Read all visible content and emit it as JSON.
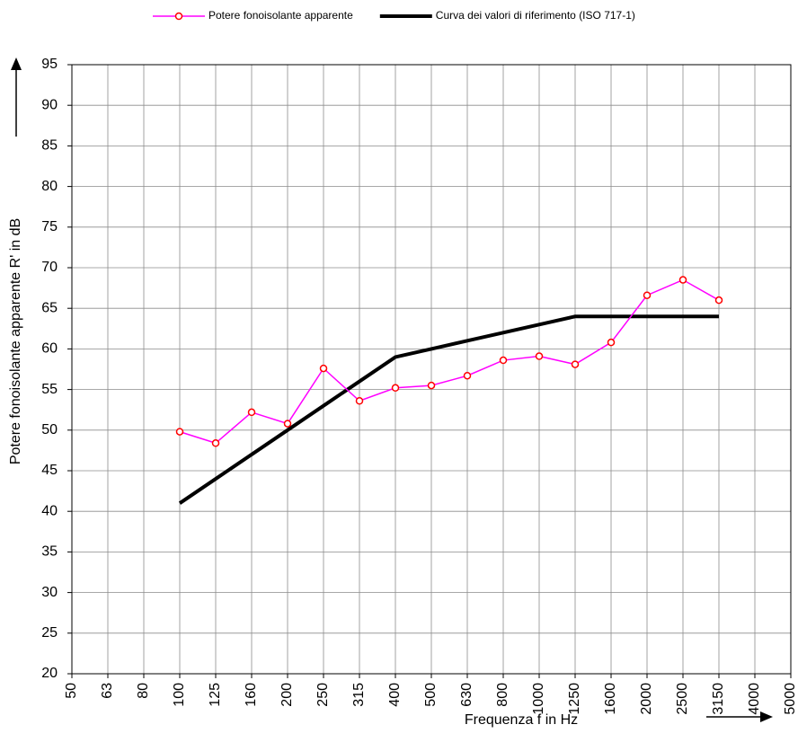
{
  "chart_data": {
    "type": "line",
    "categories": [
      "50",
      "63",
      "80",
      "100",
      "125",
      "160",
      "200",
      "250",
      "315",
      "400",
      "500",
      "630",
      "800",
      "1000",
      "1250",
      "1600",
      "2000",
      "2500",
      "3150",
      "4000",
      "5000"
    ],
    "series": [
      {
        "name": "Potere fonoisolante apparente",
        "color": "#ff00ff",
        "marker_edge_color": "#ff0000",
        "values": [
          null,
          null,
          null,
          49.8,
          48.4,
          52.2,
          50.8,
          57.6,
          53.6,
          55.2,
          55.5,
          56.7,
          58.6,
          59.1,
          58.1,
          60.8,
          66.6,
          68.5,
          66.0,
          null,
          null
        ]
      },
      {
        "name": "Curva dei valori di riferimento (ISO 717-1)",
        "color": "#000000",
        "values": [
          null,
          null,
          null,
          41,
          44,
          47,
          50,
          53,
          56,
          59,
          60,
          61,
          62,
          63,
          64,
          64,
          64,
          64,
          64,
          null,
          null
        ]
      }
    ],
    "xlabel": "Frequenza f in Hz",
    "ylabel": "Potere fonoisolante apparente R' in dB",
    "ylim": [
      20,
      95
    ],
    "yticks": [
      20,
      25,
      30,
      35,
      40,
      45,
      50,
      55,
      60,
      65,
      70,
      75,
      80,
      85,
      90,
      95
    ],
    "grid": true,
    "legend": "top"
  }
}
